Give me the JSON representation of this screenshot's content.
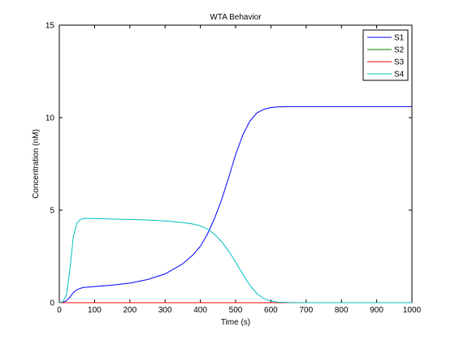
{
  "chart_data": {
    "type": "line",
    "title": "WTA Behavior",
    "xlabel": "Time (s)",
    "ylabel": "Concentration (nM)",
    "xlim": [
      0,
      1000
    ],
    "ylim": [
      0,
      15
    ],
    "xticks": [
      0,
      100,
      200,
      300,
      400,
      500,
      600,
      700,
      800,
      900,
      1000
    ],
    "yticks": [
      0,
      5,
      10,
      15
    ],
    "grid": false,
    "legend_position": "top-right",
    "series": [
      {
        "name": "S1",
        "color": "#0000ff",
        "x": [
          0,
          10,
          20,
          30,
          40,
          50,
          60,
          70,
          80,
          100,
          150,
          200,
          250,
          300,
          350,
          380,
          400,
          420,
          440,
          460,
          480,
          500,
          520,
          540,
          560,
          580,
          600,
          620,
          650,
          700,
          800,
          900,
          1000
        ],
        "y": [
          0,
          0.02,
          0.1,
          0.3,
          0.55,
          0.7,
          0.78,
          0.82,
          0.84,
          0.87,
          0.95,
          1.06,
          1.25,
          1.55,
          2.1,
          2.6,
          3.05,
          3.7,
          4.55,
          5.55,
          6.75,
          8.0,
          9.05,
          9.8,
          10.25,
          10.45,
          10.55,
          10.58,
          10.6,
          10.6,
          10.6,
          10.6,
          10.6
        ]
      },
      {
        "name": "S2",
        "color": "#008000",
        "x": [
          0,
          100,
          200,
          300,
          400,
          500,
          600,
          700,
          800,
          900,
          1000
        ],
        "y": [
          0,
          0,
          0,
          0,
          0,
          0,
          0,
          0,
          0,
          0,
          0
        ]
      },
      {
        "name": "S3",
        "color": "#ff0000",
        "x": [
          0,
          100,
          200,
          300,
          400,
          500,
          600,
          700,
          800,
          900,
          1000
        ],
        "y": [
          0,
          0,
          0,
          0,
          0,
          0,
          0,
          0,
          0,
          0,
          0
        ]
      },
      {
        "name": "S4",
        "color": "#00bfbf",
        "x": [
          0,
          10,
          20,
          30,
          40,
          50,
          60,
          70,
          80,
          100,
          150,
          200,
          250,
          300,
          350,
          380,
          400,
          420,
          440,
          460,
          480,
          500,
          520,
          540,
          560,
          580,
          600,
          620,
          650,
          700,
          800,
          900,
          1000
        ],
        "y": [
          0,
          0.05,
          0.4,
          1.8,
          3.6,
          4.3,
          4.5,
          4.55,
          4.55,
          4.55,
          4.52,
          4.5,
          4.47,
          4.42,
          4.33,
          4.25,
          4.15,
          3.98,
          3.7,
          3.3,
          2.8,
          2.2,
          1.55,
          0.95,
          0.5,
          0.22,
          0.08,
          0.03,
          0.01,
          0,
          0,
          0,
          0
        ]
      }
    ]
  }
}
